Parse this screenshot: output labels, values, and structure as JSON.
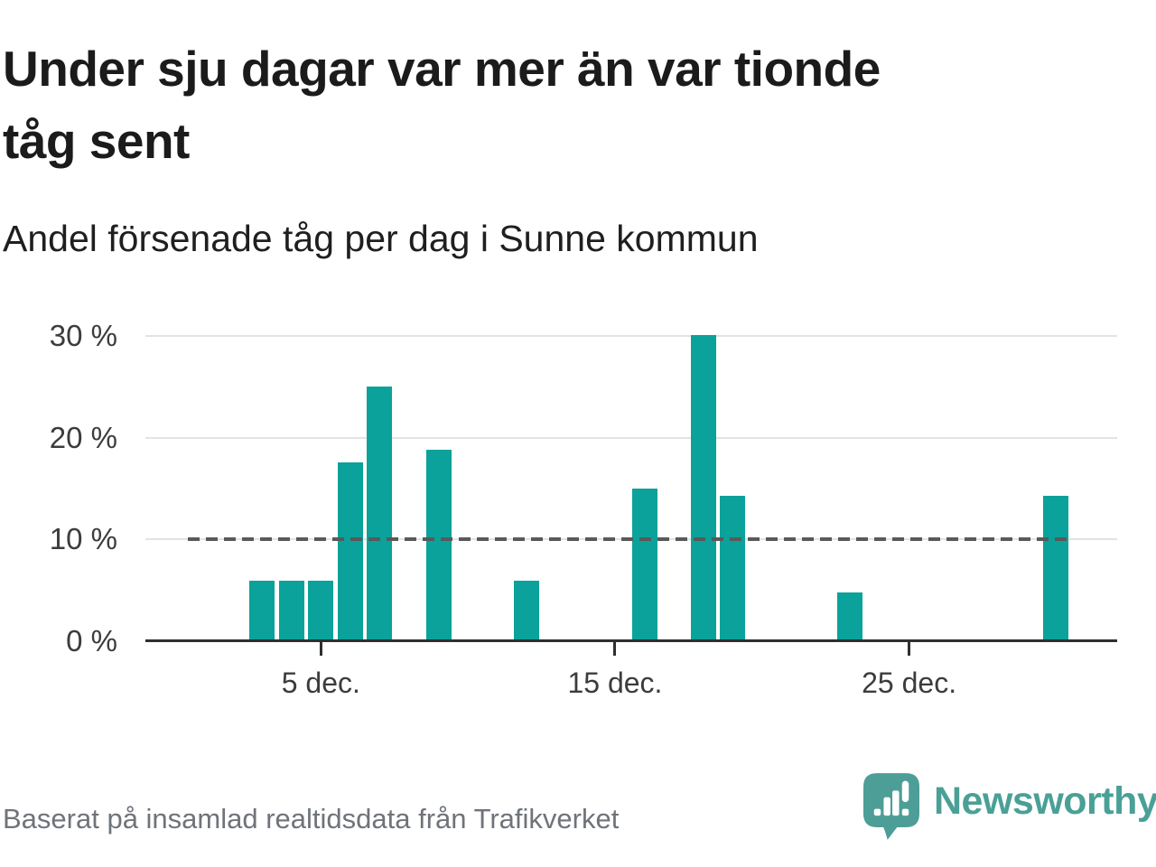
{
  "page": {
    "title_lines": [
      "Under sju dagar var mer än var tionde",
      "tåg sent"
    ],
    "subtitle": "Andel försenade tåg per dag i Sunne kommun",
    "source_note": "Baserat på insamlad realtidsdata från Trafikverket",
    "brand_name": "Newsworthy"
  },
  "chart_data": {
    "type": "bar",
    "title": "Under sju dagar var mer än var tionde tåg sent",
    "subtitle": "Andel försenade tåg per dag i Sunne kommun",
    "unit": "%",
    "xlabel": "",
    "ylabel": "",
    "points": [
      {
        "day": 3,
        "label": "3 dec.",
        "value": 5.9
      },
      {
        "day": 4,
        "label": "4 dec.",
        "value": 5.9
      },
      {
        "day": 5,
        "label": "5 dec.",
        "value": 5.9
      },
      {
        "day": 6,
        "label": "6 dec.",
        "value": 17.6
      },
      {
        "day": 7,
        "label": "7 dec.",
        "value": 25.0
      },
      {
        "day": 9,
        "label": "9 dec.",
        "value": 18.8
      },
      {
        "day": 12,
        "label": "12 dec.",
        "value": 5.9
      },
      {
        "day": 16,
        "label": "16 dec.",
        "value": 15.0
      },
      {
        "day": 18,
        "label": "18 dec.",
        "value": 30.1
      },
      {
        "day": 19,
        "label": "19 dec.",
        "value": 14.3
      },
      {
        "day": 23,
        "label": "23 dec.",
        "value": 4.8
      },
      {
        "day": 30,
        "label": "30 dec.",
        "value": 14.3
      }
    ],
    "x_ticks": [
      {
        "day": 5,
        "label": "5 dec."
      },
      {
        "day": 15,
        "label": "15 dec."
      },
      {
        "day": 25,
        "label": "25 dec."
      }
    ],
    "y_ticks": [
      {
        "value": 30,
        "label": "30 %"
      },
      {
        "value": 20,
        "label": "20 %"
      },
      {
        "value": 10,
        "label": "10 %"
      },
      {
        "value": 0,
        "label": "0 %"
      }
    ],
    "ylim": [
      0,
      31.5
    ],
    "grid": "horizontal",
    "legend": "none",
    "reference_line": {
      "value": 10,
      "style": "dashed"
    }
  },
  "colors": {
    "bar": "#0aa29a",
    "reference_line": "#595959",
    "gridline": "#e3e3e3",
    "axis_line": "#2f2f2f",
    "title_text": "#1b1b1b",
    "axis_text": "#3c3c3c",
    "muted_text": "#6f737a",
    "brand_teal": "#4aa096",
    "background": "#ffffff"
  }
}
